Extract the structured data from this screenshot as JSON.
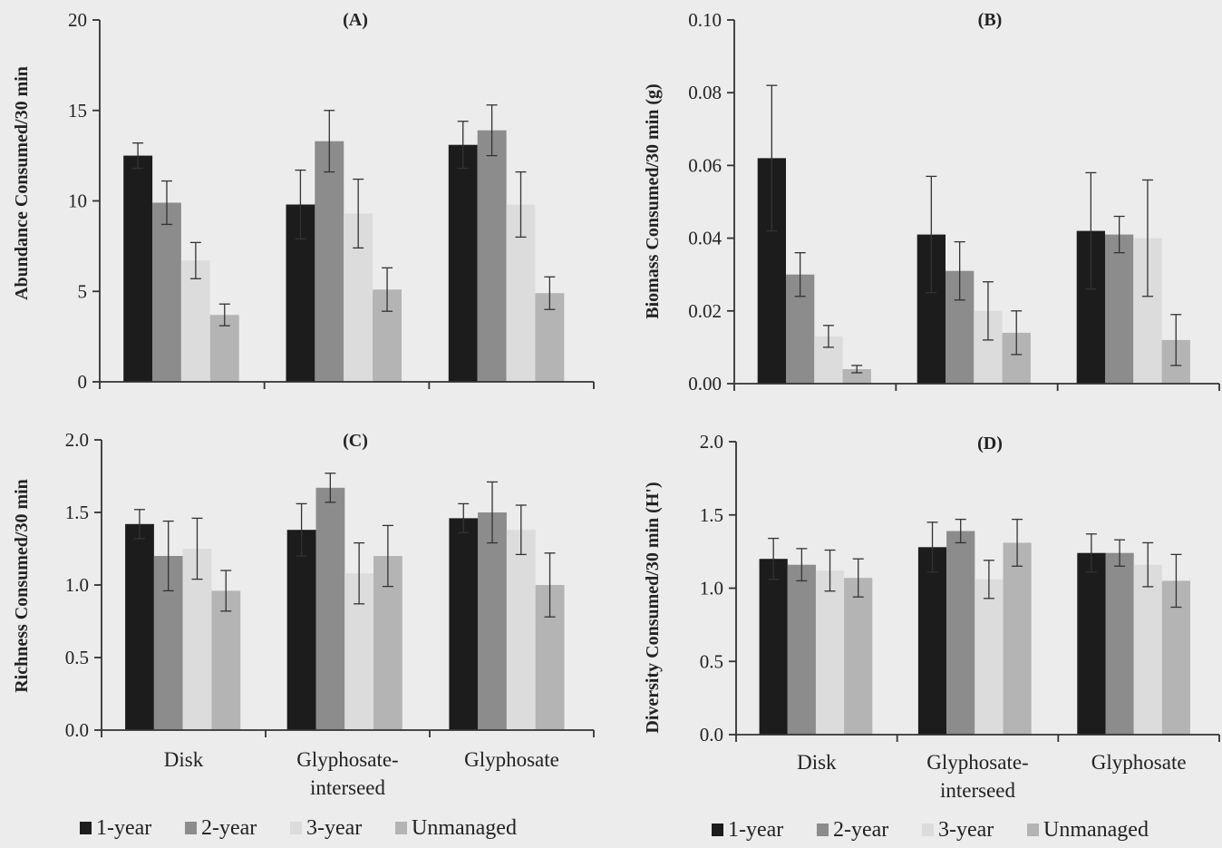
{
  "chart_data": [
    {
      "type": "bar",
      "title": "(A)",
      "ylabel": "Abundance Consumed/30 min",
      "ylim": [
        0,
        20
      ],
      "yticks": [
        "0",
        "5",
        "10",
        "15",
        "20"
      ],
      "categories": [
        "",
        "",
        ""
      ],
      "series": [
        {
          "name": "1-year",
          "values": [
            12.5,
            9.8,
            13.1
          ],
          "errors": [
            0.7,
            1.9,
            1.3
          ]
        },
        {
          "name": "2-year",
          "values": [
            9.9,
            13.3,
            13.9
          ],
          "errors": [
            1.2,
            1.7,
            1.4
          ]
        },
        {
          "name": "3-year",
          "values": [
            6.7,
            9.3,
            9.8
          ],
          "errors": [
            1.0,
            1.9,
            1.8
          ]
        },
        {
          "name": "Unmanaged",
          "values": [
            3.7,
            5.1,
            4.9
          ],
          "errors": [
            0.6,
            1.2,
            0.9
          ]
        }
      ]
    },
    {
      "type": "bar",
      "title": "(B)",
      "ylabel": "Biomass Consumed/30 min (g)",
      "ylim": [
        0,
        0.1
      ],
      "yticks": [
        "0.00",
        "0.02",
        "0.04",
        "0.06",
        "0.08",
        "0.10"
      ],
      "categories": [
        "",
        "",
        ""
      ],
      "series": [
        {
          "name": "1-year",
          "values": [
            0.062,
            0.041,
            0.042
          ],
          "errors": [
            0.02,
            0.016,
            0.016
          ]
        },
        {
          "name": "2-year",
          "values": [
            0.03,
            0.031,
            0.041
          ],
          "errors": [
            0.006,
            0.008,
            0.005
          ]
        },
        {
          "name": "3-year",
          "values": [
            0.013,
            0.02,
            0.04
          ],
          "errors": [
            0.003,
            0.008,
            0.016
          ]
        },
        {
          "name": "Unmanaged",
          "values": [
            0.004,
            0.014,
            0.012
          ],
          "errors": [
            0.001,
            0.006,
            0.007
          ]
        }
      ]
    },
    {
      "type": "bar",
      "title": "(C)",
      "ylabel": "Richness Consumed/30 min",
      "ylim": [
        0,
        2
      ],
      "yticks": [
        "0.0",
        "0.5",
        "1.0",
        "1.5",
        "2.0"
      ],
      "categories": [
        "Disk",
        "Glyphosate-\ninterseed",
        "Glyphosate"
      ],
      "series": [
        {
          "name": "1-year",
          "values": [
            1.42,
            1.38,
            1.46
          ],
          "errors": [
            0.1,
            0.18,
            0.1
          ]
        },
        {
          "name": "2-year",
          "values": [
            1.2,
            1.67,
            1.5
          ],
          "errors": [
            0.24,
            0.1,
            0.21
          ]
        },
        {
          "name": "3-year",
          "values": [
            1.25,
            1.08,
            1.38
          ],
          "errors": [
            0.21,
            0.21,
            0.17
          ]
        },
        {
          "name": "Unmanaged",
          "values": [
            0.96,
            1.2,
            1.0
          ],
          "errors": [
            0.14,
            0.21,
            0.22
          ]
        }
      ]
    },
    {
      "type": "bar",
      "title": "(D)",
      "ylabel": "Diversity Consumed/30 min (H')",
      "ylim": [
        0,
        2
      ],
      "yticks": [
        "0.0",
        "0.5",
        "1.0",
        "1.5",
        "2.0"
      ],
      "categories": [
        "Disk",
        "Glyphosate-\ninterseed",
        "Glyphosate"
      ],
      "series": [
        {
          "name": "1-year",
          "values": [
            1.2,
            1.28,
            1.24
          ],
          "errors": [
            0.14,
            0.17,
            0.13
          ]
        },
        {
          "name": "2-year",
          "values": [
            1.16,
            1.39,
            1.24
          ],
          "errors": [
            0.11,
            0.08,
            0.09
          ]
        },
        {
          "name": "3-year",
          "values": [
            1.12,
            1.06,
            1.16
          ],
          "errors": [
            0.14,
            0.13,
            0.15
          ]
        },
        {
          "name": "Unmanaged",
          "values": [
            1.07,
            1.31,
            1.05
          ],
          "errors": [
            0.13,
            0.16,
            0.18
          ]
        }
      ]
    }
  ],
  "legend": [
    "1-year",
    "2-year",
    "3-year",
    "Unmanaged"
  ],
  "colors": [
    "#1c1c1c",
    "#8c8c8c",
    "#dcdcdc",
    "#b4b4b4"
  ],
  "grid": false,
  "legend_position": "bottom"
}
